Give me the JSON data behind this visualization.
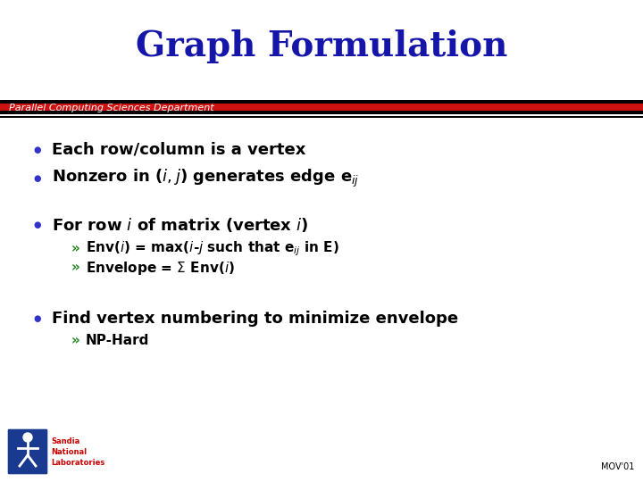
{
  "title": "Graph Formulation",
  "title_color": "#1515aa",
  "title_fontsize": 28,
  "subtitle": "Parallel Computing Sciences Department",
  "subtitle_fontsize": 8,
  "bg_color": "#ffffff",
  "bullet_color": "#3333cc",
  "bullet_char": "●",
  "text_color": "#000000",
  "green_color": "#228822",
  "bullet1": "Each row/column is a vertex",
  "bullet2": "Nonzero in ($\\it{i,j}$) generates edge e$_{\\it{ij}}$",
  "bullet3": "For row $\\it{i}$ of matrix (vertex $\\it{i}$)",
  "sub1": "Env($\\it{i}$) = max($\\it{i}$-$\\it{j}$ such that e$_{\\it{ij}}$ in E)",
  "sub2": "Envelope = $\\Sigma$ Env($\\it{i}$)",
  "bullet4": "Find vertex numbering to minimize envelope",
  "sub3": "NP-Hard",
  "footer_text": "MOV'01",
  "footer_color": "#000000",
  "footer_fontsize": 7,
  "bullet_fontsize": 13,
  "sub_fontsize": 11
}
